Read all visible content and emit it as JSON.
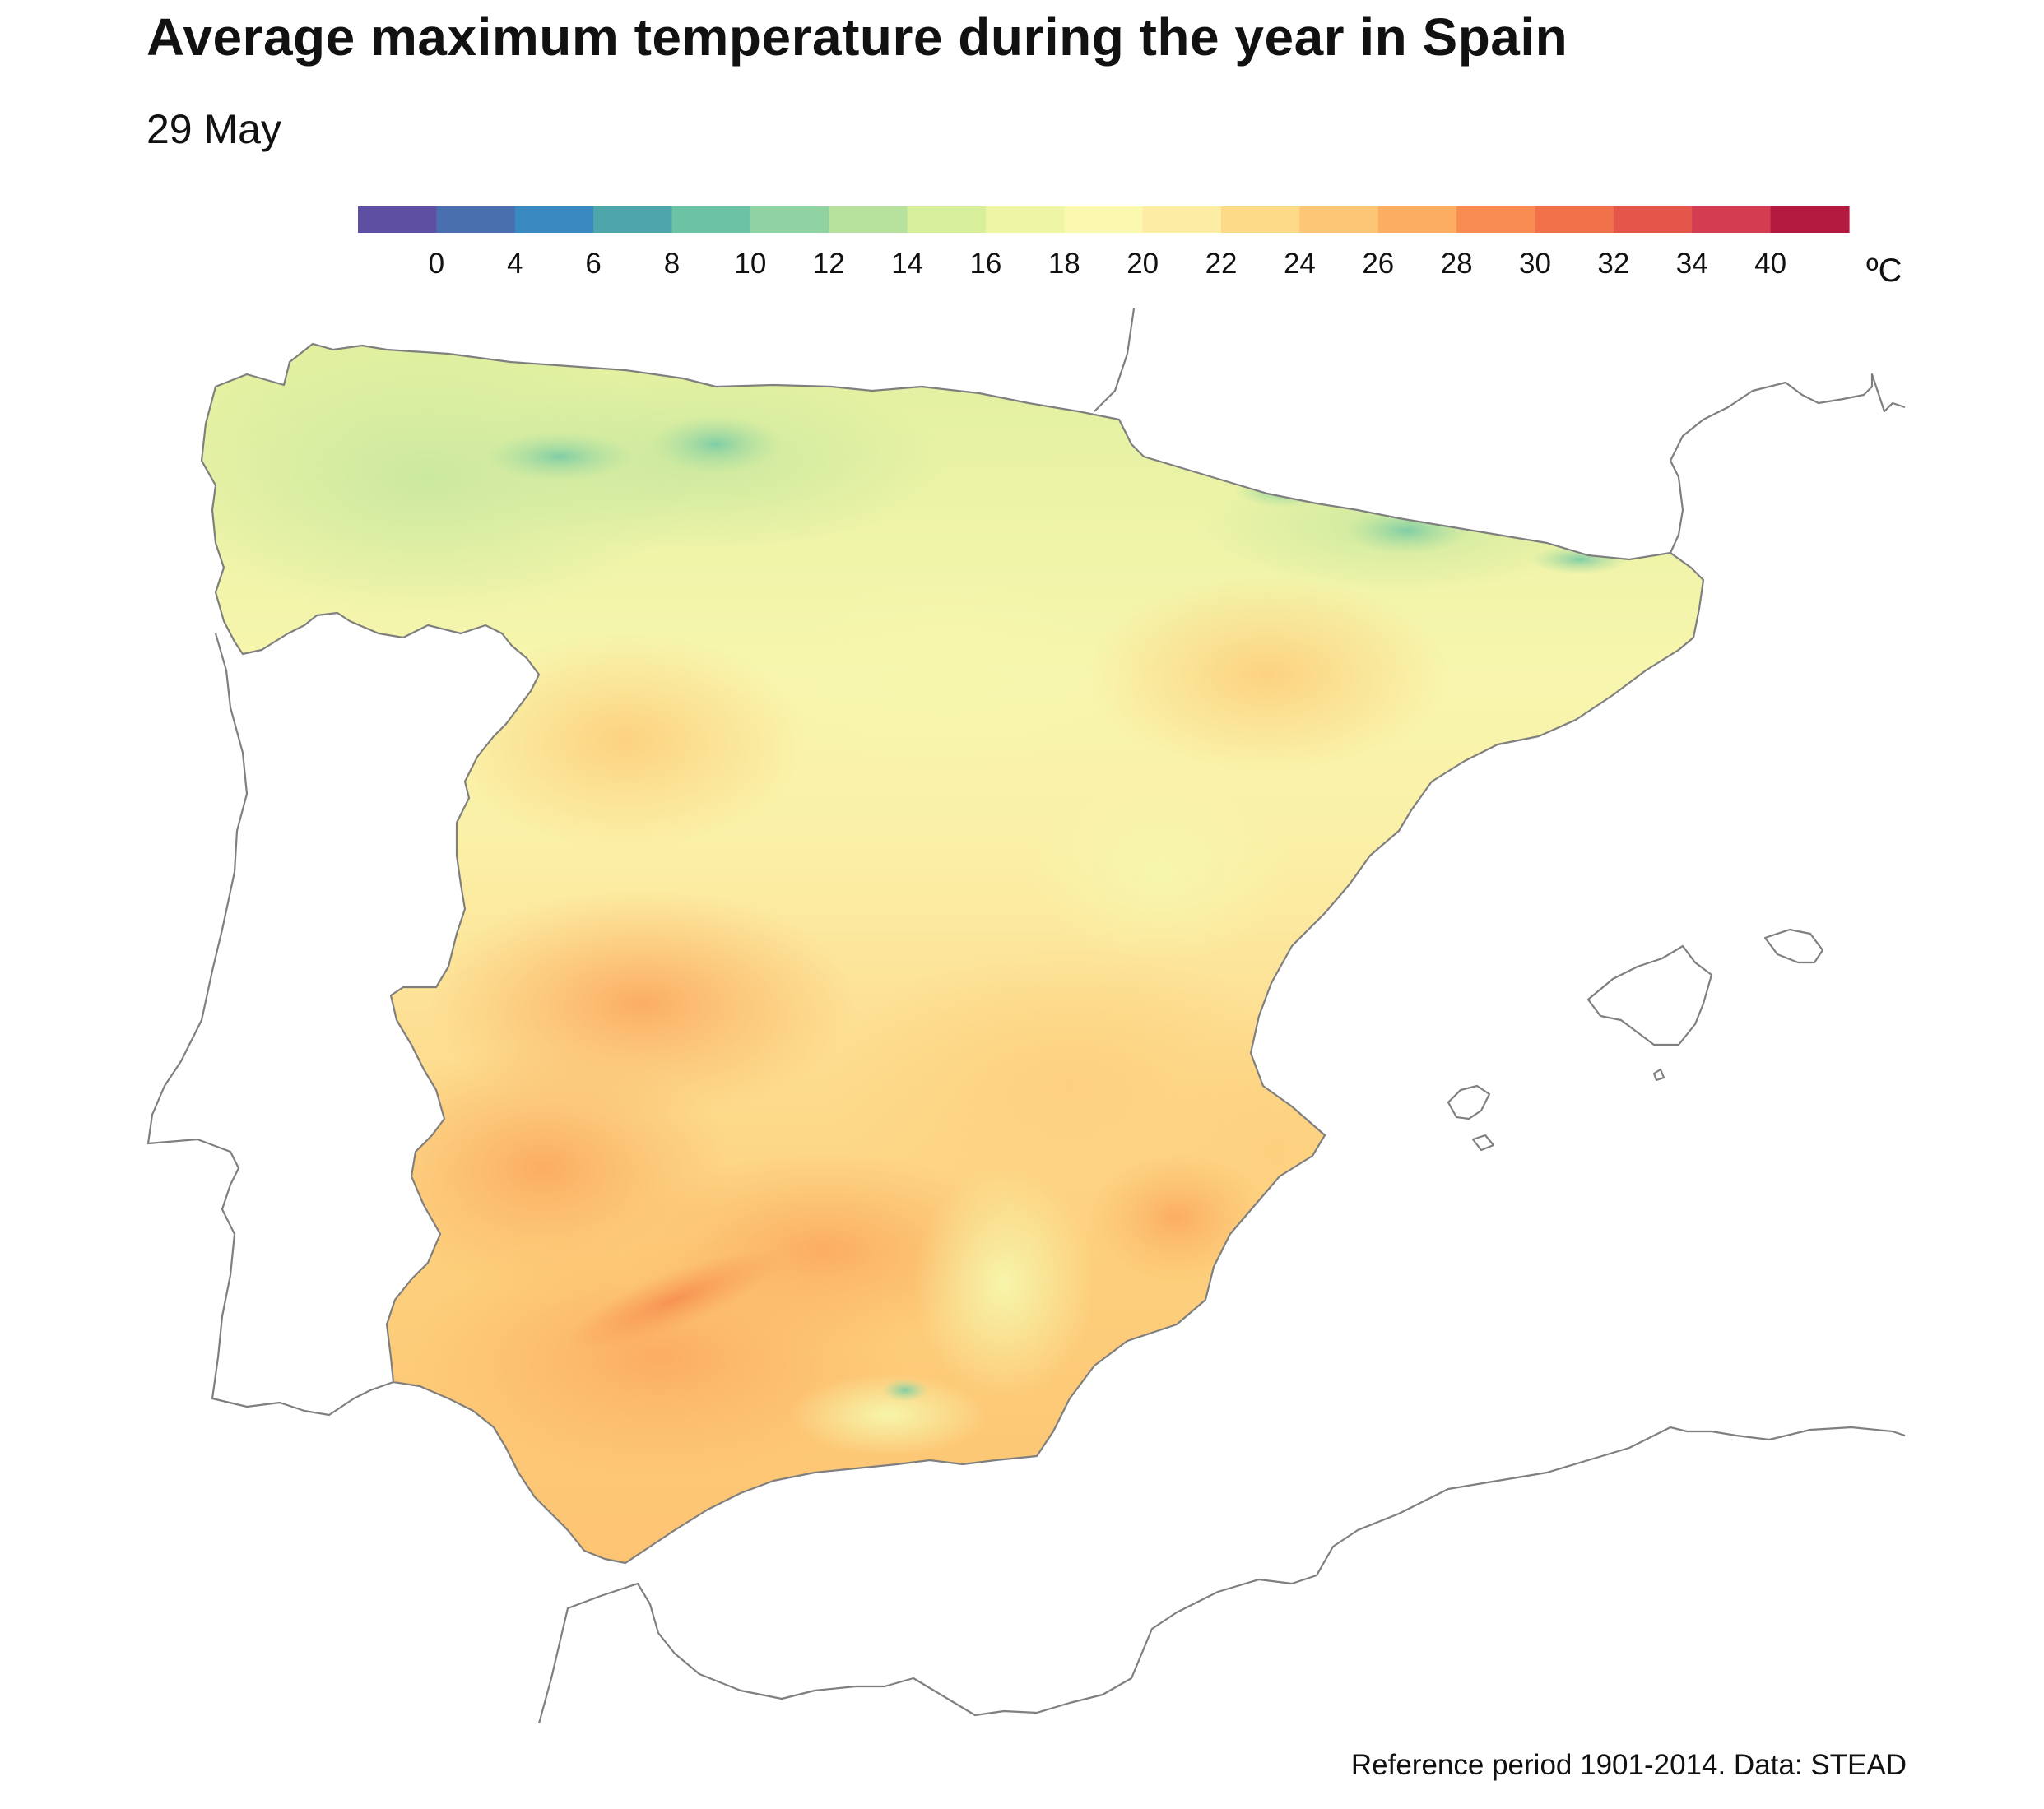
{
  "title": "Average maximum temperature during the year in Spain",
  "subtitle": "29 May",
  "caption": "Reference period 1901-2014. Data: STEAD",
  "legend": {
    "unit": "ºC",
    "ticks": [
      "0",
      "4",
      "6",
      "8",
      "10",
      "12",
      "14",
      "16",
      "18",
      "20",
      "22",
      "24",
      "26",
      "28",
      "30",
      "32",
      "34",
      "40"
    ],
    "colors": [
      "#5e4fa2",
      "#4a6fae",
      "#3a89c0",
      "#4ea5aa",
      "#6cc2a4",
      "#91d2a3",
      "#b6e29e",
      "#d7ee9b",
      "#eef6a6",
      "#fbf8b0",
      "#fdeca4",
      "#fdda88",
      "#fdc676",
      "#fcad62",
      "#f88c53",
      "#f1714a",
      "#e5564a",
      "#d43d51",
      "#b4193f"
    ]
  },
  "map": {
    "region": "Iberian Peninsula",
    "fill_colors": {
      "cool_north": "#dcef9f",
      "mountains": "#8fd2a5",
      "central_plateau": "#fbf7b2",
      "warm": "#fdda88",
      "hot": "#fcb566",
      "hottest": "#f8964f"
    }
  }
}
